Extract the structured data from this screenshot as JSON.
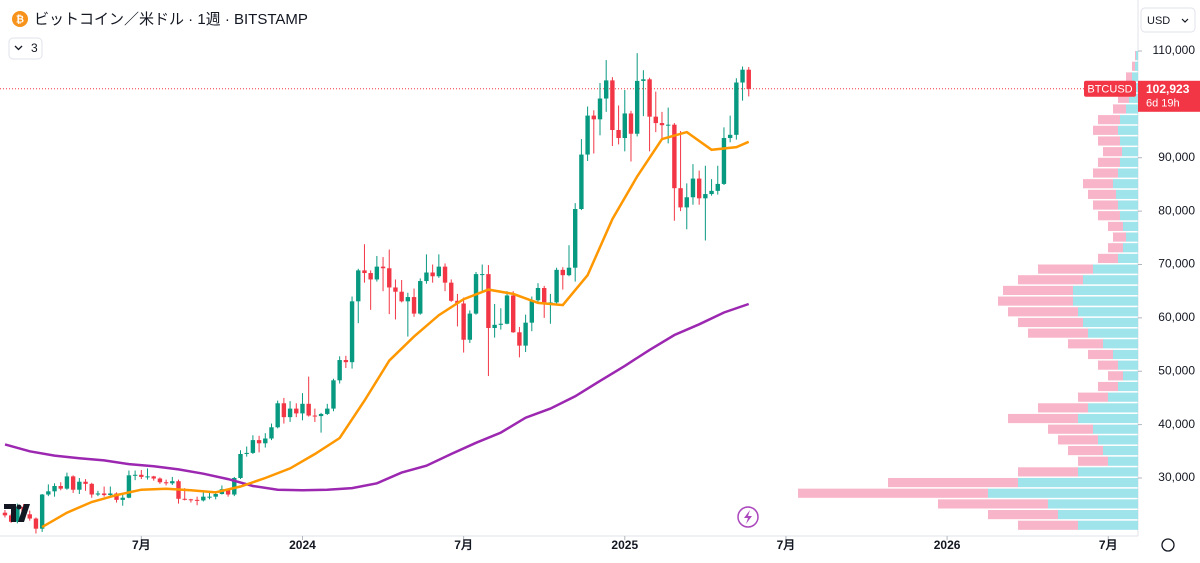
{
  "chart_data": {
    "type": "candlestick",
    "title": "ビットコイン／米ドル · 1週 · BITSTAMP",
    "indicator_count": 3,
    "currency": "USD",
    "symbol": "BTCUSD",
    "last_price": {
      "value": 102923,
      "label": "102,923"
    },
    "countdown": "6d 19h",
    "up_color": "#089981",
    "down_color": "#f23645",
    "xlim": [
      3.2,
      186.8
    ],
    "xticks": [
      {
        "value": 26,
        "label": "7月"
      },
      {
        "value": 52,
        "label": "2024"
      },
      {
        "value": 78,
        "label": "7月"
      },
      {
        "value": 104,
        "label": "2025"
      },
      {
        "value": 130,
        "label": "7月"
      },
      {
        "value": 156,
        "label": "2026"
      },
      {
        "value": 182,
        "label": "7月"
      }
    ],
    "ylim": [
      19130,
      119560
    ],
    "yticks": [
      {
        "value": 30000,
        "label": "30,000"
      },
      {
        "value": 40000,
        "label": "40,000"
      },
      {
        "value": 50000,
        "label": "50,000"
      },
      {
        "value": 60000,
        "label": "60,000"
      },
      {
        "value": 70000,
        "label": "70,000"
      },
      {
        "value": 80000,
        "label": "80,000"
      },
      {
        "value": 90000,
        "label": "90,000"
      },
      {
        "value": 110000,
        "label": "110,000"
      }
    ],
    "grid": false,
    "x": [
      4,
      5,
      6,
      7,
      8,
      9,
      10,
      11,
      12,
      13,
      14,
      15,
      16,
      17,
      18,
      19,
      20,
      21,
      22,
      23,
      24,
      25,
      26,
      27,
      28,
      29,
      30,
      31,
      32,
      33,
      34,
      35,
      36,
      37,
      38,
      39,
      40,
      41,
      42,
      43,
      44,
      45,
      46,
      47,
      48,
      49,
      50,
      51,
      52,
      53,
      54,
      55,
      56,
      57,
      58,
      59,
      60,
      61,
      62,
      63,
      64,
      65,
      66,
      67,
      68,
      69,
      70,
      71,
      72,
      73,
      74,
      75,
      76,
      77,
      78,
      79,
      80,
      81,
      82,
      83,
      84,
      85,
      86,
      87,
      88,
      89,
      90,
      91,
      92,
      93,
      94,
      95,
      96,
      97,
      98,
      99,
      100,
      101,
      102,
      103,
      104,
      105,
      106,
      107,
      108,
      109,
      110,
      111,
      112,
      113,
      114,
      115,
      116,
      117,
      118,
      119,
      120,
      121,
      122,
      123,
      124
    ],
    "open": [
      23500,
      23000,
      21800,
      24600,
      23200,
      22400,
      20500,
      26900,
      27500,
      28500,
      28000,
      30300,
      27800,
      29300,
      28900,
      26900,
      27100,
      26800,
      27100,
      25900,
      26300,
      30500,
      30600,
      30200,
      30300,
      29900,
      29200,
      29000,
      29400,
      26100,
      26000,
      25900,
      25800,
      26500,
      26500,
      27000,
      27900,
      26900,
      30000,
      34500,
      34700,
      37100,
      36500,
      37400,
      39500,
      44000,
      41400,
      43000,
      42100,
      43900,
      41700,
      41600,
      42000,
      43000,
      48300,
      52100,
      51700,
      63100,
      68900,
      68400,
      67200,
      69600,
      69300,
      65700,
      64900,
      63100,
      63900,
      60800,
      66900,
      68500,
      67800,
      69600,
      66600,
      63200,
      62700,
      55900,
      60800,
      68200,
      68200,
      58100,
      58700,
      58900,
      64200,
      57300,
      54800,
      59100,
      63300,
      65600,
      62900,
      62900,
      69000,
      68000,
      69400,
      80400,
      90600,
      97900,
      97200,
      101100,
      104500,
      95200,
      93700,
      98300,
      94500,
      104400,
      104700,
      97700,
      96500,
      96100,
      96200,
      84300,
      80700,
      82600,
      86100,
      82400,
      83200,
      83800,
      85100,
      93700,
      94300,
      104100,
      106500
    ],
    "high": [
      24000,
      23300,
      25200,
      25100,
      23900,
      22600,
      27000,
      28800,
      29000,
      29200,
      31000,
      30500,
      30000,
      29800,
      29100,
      27600,
      28400,
      28400,
      27300,
      27000,
      31400,
      31400,
      31500,
      31800,
      30400,
      30100,
      29700,
      30200,
      29700,
      28100,
      26100,
      26500,
      27500,
      27200,
      27300,
      28600,
      28000,
      30200,
      35200,
      35900,
      38000,
      37900,
      38400,
      40200,
      44500,
      45000,
      44400,
      44000,
      45900,
      49000,
      43000,
      42200,
      43900,
      48600,
      52800,
      52900,
      64000,
      69200,
      73800,
      68900,
      71600,
      71400,
      72800,
      67200,
      67100,
      64700,
      65500,
      67400,
      71900,
      70000,
      71900,
      70200,
      67200,
      64500,
      63800,
      61400,
      68600,
      70000,
      69900,
      62600,
      61800,
      65000,
      65000,
      58300,
      60600,
      64000,
      66500,
      66000,
      64500,
      69400,
      69500,
      73600,
      81500,
      93500,
      99600,
      98900,
      104000,
      108300,
      105100,
      99800,
      102700,
      98800,
      109600,
      106400,
      105000,
      102400,
      98600,
      99400,
      96500,
      95000,
      85200,
      88800,
      87600,
      88500,
      86000,
      88500,
      95700,
      97900,
      104900,
      107100,
      107000
    ],
    "low": [
      22600,
      21600,
      21500,
      23000,
      22000,
      19600,
      19900,
      26600,
      26500,
      27700,
      27800,
      27200,
      27000,
      27600,
      26300,
      26600,
      26500,
      26500,
      25400,
      24800,
      26200,
      29600,
      29800,
      29700,
      29500,
      28900,
      28600,
      28700,
      25200,
      25800,
      25400,
      24900,
      25600,
      26000,
      26000,
      26900,
      26500,
      26600,
      29800,
      34000,
      34500,
      34800,
      35700,
      37100,
      39300,
      40200,
      40500,
      41400,
      40800,
      41500,
      40500,
      38500,
      41800,
      42500,
      47700,
      50600,
      50500,
      59000,
      66600,
      61500,
      66800,
      65000,
      60700,
      59700,
      62900,
      56500,
      60200,
      60600,
      66400,
      66600,
      67500,
      65000,
      63000,
      58400,
      53500,
      55300,
      60600,
      65000,
      49100,
      56300,
      57800,
      58800,
      57200,
      52600,
      53600,
      57500,
      62700,
      60000,
      58900,
      62400,
      65300,
      67800,
      66800,
      80200,
      89400,
      90800,
      94200,
      98600,
      92200,
      92500,
      91200,
      89300,
      94000,
      97800,
      91200,
      94800,
      93400,
      92700,
      78200,
      80000,
      76600,
      81200,
      81200,
      74500,
      82900,
      83100,
      84900,
      92900,
      93400,
      100700,
      101500
    ],
    "close": [
      23000,
      21800,
      24600,
      23200,
      22400,
      20500,
      26900,
      27500,
      28500,
      28000,
      30300,
      27800,
      29300,
      28900,
      26900,
      27100,
      26800,
      27100,
      25900,
      26300,
      30500,
      30600,
      30200,
      30300,
      29900,
      29200,
      29000,
      29400,
      26100,
      26000,
      25900,
      25800,
      26500,
      26500,
      27000,
      27900,
      26900,
      30000,
      34500,
      34700,
      37100,
      36500,
      37400,
      39500,
      44000,
      41400,
      43000,
      42100,
      43900,
      41700,
      41600,
      42000,
      43000,
      48300,
      52100,
      51700,
      63100,
      68900,
      68400,
      67200,
      69600,
      69300,
      65700,
      64900,
      63100,
      63900,
      60800,
      66900,
      68500,
      67800,
      69600,
      66600,
      63200,
      62700,
      55900,
      60800,
      68200,
      68200,
      58100,
      58700,
      58900,
      64200,
      57300,
      54800,
      59100,
      63300,
      65600,
      62900,
      62900,
      69000,
      68000,
      69400,
      80400,
      90600,
      97900,
      97200,
      101100,
      104500,
      95200,
      93700,
      98300,
      94500,
      104400,
      104700,
      97700,
      96500,
      96100,
      96200,
      84300,
      80700,
      82600,
      86100,
      82400,
      83200,
      83800,
      85100,
      93700,
      94300,
      104100,
      106500,
      102900
    ],
    "moving_averages": [
      {
        "color": "#9c27b0",
        "x": [
          4,
          8,
          12,
          16,
          20,
          24,
          28,
          32,
          36,
          40,
          44,
          48,
          52,
          56,
          60,
          64,
          68,
          72,
          76,
          80,
          84,
          88,
          92,
          96,
          100,
          104,
          108,
          112,
          116,
          120,
          124
        ],
        "values": [
          36300,
          35000,
          34200,
          33700,
          33300,
          32600,
          32200,
          31600,
          30800,
          29800,
          28500,
          27800,
          27700,
          27800,
          28100,
          29000,
          31000,
          32300,
          34500,
          36600,
          38500,
          41300,
          43000,
          45300,
          48200,
          51000,
          54000,
          56800,
          58800,
          61000,
          62600
        ]
      },
      {
        "color": "#ff9800",
        "x": [
          10,
          14,
          18,
          22,
          26,
          30,
          34,
          38,
          42,
          46,
          50,
          54,
          58,
          62,
          66,
          70,
          74,
          78,
          82,
          86,
          90,
          94,
          98,
          102,
          106,
          110,
          114,
          118,
          122,
          124
        ],
        "values": [
          20800,
          23500,
          25500,
          26800,
          27800,
          28000,
          27700,
          27300,
          28400,
          30000,
          31800,
          34500,
          37500,
          44500,
          52000,
          56500,
          60500,
          63500,
          65300,
          64500,
          62800,
          62400,
          68000,
          78500,
          86500,
          93500,
          94800,
          91500,
          92000,
          93000
        ]
      }
    ],
    "volume_profile": {
      "up_color": "#8fdfe8",
      "down_color": "#f7a8c0",
      "bins": [
        20000,
        22000,
        24000,
        26000,
        28000,
        30000,
        32000,
        34000,
        36000,
        38000,
        40000,
        42000,
        44000,
        46000,
        48000,
        50000,
        52000,
        54000,
        56000,
        58000,
        60000,
        62000,
        64000,
        66000,
        68000,
        70000,
        72000,
        74000,
        76000,
        78000,
        80000,
        82000,
        84000,
        86000,
        88000,
        90000,
        92000,
        94000,
        96000,
        98000,
        100000,
        102000,
        104000,
        106000,
        108000,
        110000
      ],
      "up": [
        60,
        80,
        90,
        150,
        120,
        60,
        30,
        35,
        40,
        45,
        60,
        50,
        30,
        20,
        15,
        20,
        25,
        35,
        50,
        55,
        60,
        65,
        65,
        55,
        45,
        20,
        15,
        12,
        15,
        18,
        20,
        22,
        25,
        20,
        18,
        16,
        18,
        20,
        18,
        12,
        9,
        8,
        6,
        3,
        2
      ],
      "down": [
        60,
        70,
        110,
        190,
        130,
        60,
        30,
        35,
        40,
        45,
        70,
        50,
        30,
        20,
        15,
        20,
        25,
        35,
        60,
        65,
        70,
        75,
        70,
        65,
        55,
        20,
        15,
        13,
        15,
        22,
        25,
        28,
        30,
        25,
        22,
        19,
        22,
        25,
        22,
        13,
        11,
        10,
        6,
        3,
        1
      ]
    }
  }
}
